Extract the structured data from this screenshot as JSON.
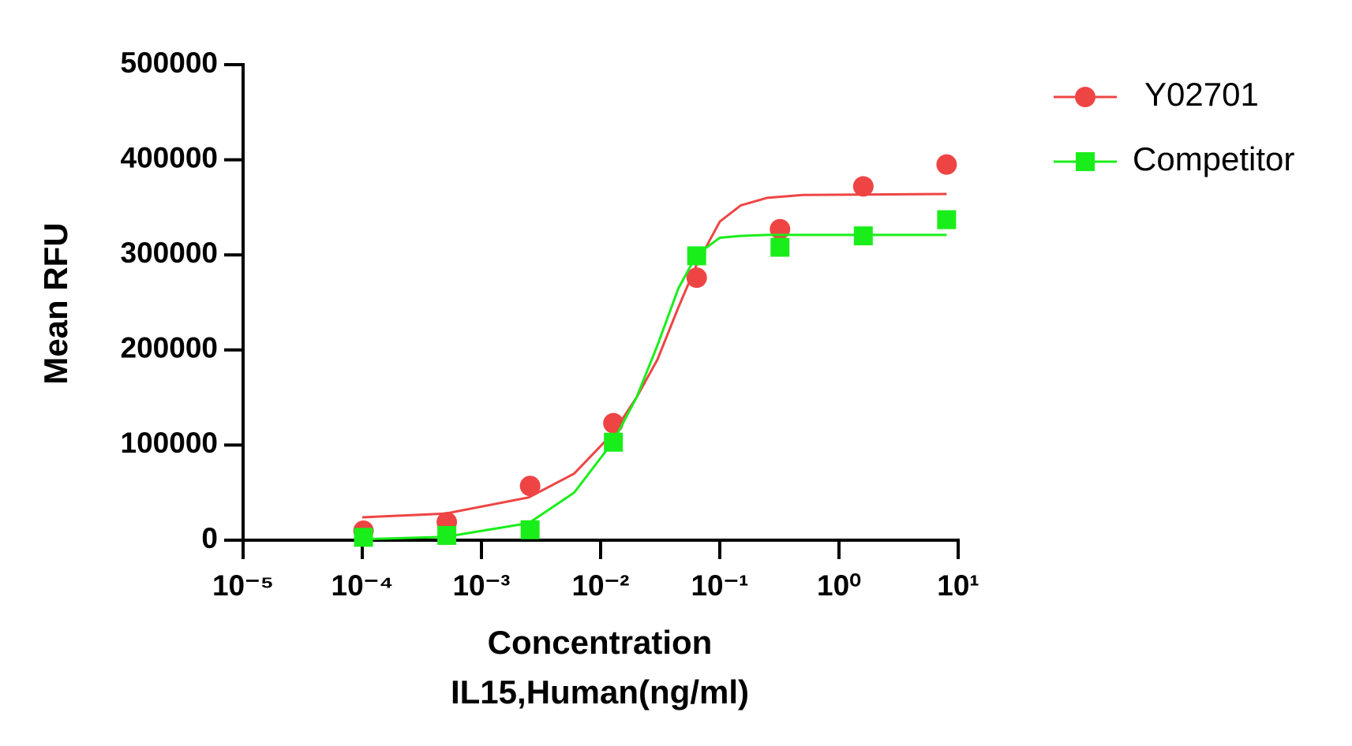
{
  "chart_data": {
    "type": "scatter-fit",
    "xlabel": [
      "Concentration",
      "IL15,Human(ng/ml)"
    ],
    "ylabel": "Mean RFU",
    "xscale": "log",
    "xlim": [
      1e-05,
      10
    ],
    "xticks": [
      {
        "value": 1e-05,
        "label": "10⁻⁵"
      },
      {
        "value": 0.0001,
        "label": "10⁻⁴"
      },
      {
        "value": 0.001,
        "label": "10⁻³"
      },
      {
        "value": 0.01,
        "label": "10⁻²"
      },
      {
        "value": 0.1,
        "label": "10⁻¹"
      },
      {
        "value": 1,
        "label": "10⁰"
      },
      {
        "value": 10,
        "label": "10¹"
      }
    ],
    "ylim": [
      0,
      500000
    ],
    "yticks": [
      0,
      100000,
      200000,
      300000,
      400000,
      500000
    ],
    "legend": "top-right",
    "series": [
      {
        "name": "Y02701",
        "color": "#ef4444",
        "marker": "circle",
        "x": [
          0.0001024,
          0.000512,
          0.00256,
          0.0128,
          0.064,
          0.32,
          1.6,
          8
        ],
        "values": [
          10000,
          19000,
          57000,
          123000,
          276000,
          327000,
          372000,
          395000
        ],
        "fit": {
          "x": [
            0.0001,
            0.0005,
            0.0025,
            0.006,
            0.0128,
            0.02,
            0.03,
            0.045,
            0.064,
            0.1,
            0.15,
            0.25,
            0.5,
            8
          ],
          "values": [
            24000,
            28000,
            45000,
            70000,
            113000,
            150000,
            190000,
            245000,
            290000,
            335000,
            352000,
            360000,
            363000,
            364000
          ]
        }
      },
      {
        "name": "Competitor",
        "color": "#1aee1a",
        "marker": "square",
        "x": [
          0.0001024,
          0.000512,
          0.00256,
          0.0128,
          0.064,
          0.32,
          1.6,
          8
        ],
        "values": [
          3000,
          5000,
          11000,
          103000,
          299000,
          308000,
          320000,
          337000
        ],
        "fit": {
          "x": [
            0.0001,
            0.0005,
            0.0025,
            0.006,
            0.0128,
            0.02,
            0.03,
            0.045,
            0.064,
            0.1,
            0.15,
            0.25,
            0.5,
            8
          ],
          "values": [
            1000,
            3500,
            18000,
            50000,
            104000,
            150000,
            205000,
            265000,
            300000,
            318000,
            320000,
            321000,
            321000,
            321000
          ]
        }
      }
    ]
  }
}
